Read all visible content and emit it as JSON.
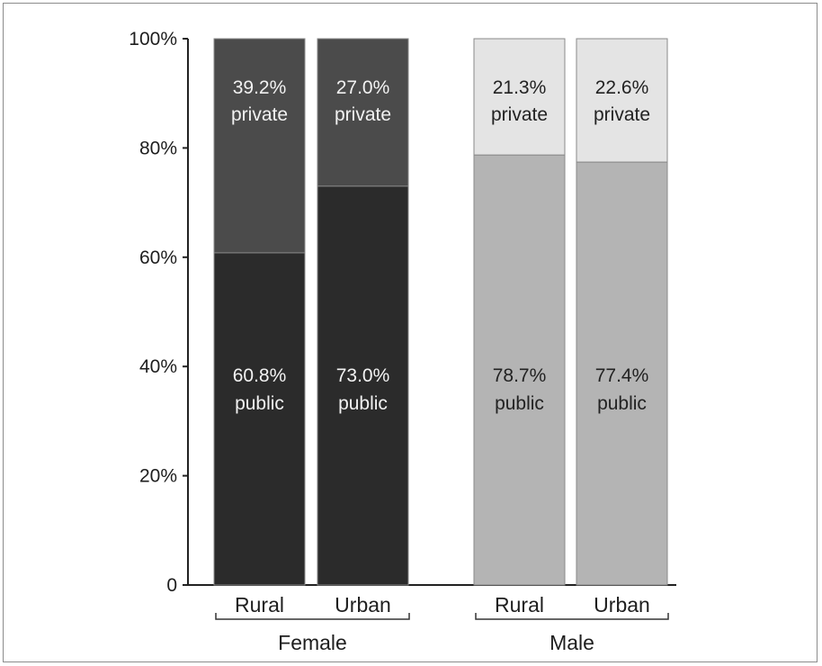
{
  "chart_data": {
    "type": "bar",
    "stacked": true,
    "percent_stacked": true,
    "title": "",
    "xlabel": "",
    "ylabel": "",
    "ylim": [
      0,
      100
    ],
    "y_ticks": [
      {
        "value": 0,
        "label": "0"
      },
      {
        "value": 20,
        "label": "20%"
      },
      {
        "value": 40,
        "label": "40%"
      },
      {
        "value": 60,
        "label": "60%"
      },
      {
        "value": 80,
        "label": "80%"
      },
      {
        "value": 100,
        "label": "100%"
      }
    ],
    "groups": [
      {
        "name": "Female",
        "categories": [
          "Rural",
          "Urban"
        ]
      },
      {
        "name": "Male",
        "categories": [
          "Rural",
          "Urban"
        ]
      }
    ],
    "bars": [
      {
        "group": "Female",
        "category": "Rural",
        "public": 60.8,
        "private": 39.2,
        "public_label": "60.8%",
        "private_label": "39.2%",
        "public_word": "public",
        "private_word": "private",
        "public_color": "#2b2b2b",
        "private_color": "#4b4b4b",
        "text_color": "#f2f2f2"
      },
      {
        "group": "Female",
        "category": "Urban",
        "public": 73.0,
        "private": 27.0,
        "public_label": "73.0%",
        "private_label": "27.0%",
        "public_word": "public",
        "private_word": "private",
        "public_color": "#2b2b2b",
        "private_color": "#4b4b4b",
        "text_color": "#f2f2f2"
      },
      {
        "group": "Male",
        "category": "Rural",
        "public": 78.7,
        "private": 21.3,
        "public_label": "78.7%",
        "private_label": "21.3%",
        "public_word": "public",
        "private_word": "private",
        "public_color": "#b4b4b4",
        "private_color": "#e4e4e4",
        "text_color": "#222222"
      },
      {
        "group": "Male",
        "category": "Urban",
        "public": 77.4,
        "private": 22.6,
        "public_label": "77.4%",
        "private_label": "22.6%",
        "public_word": "public",
        "private_word": "private",
        "public_color": "#b4b4b4",
        "private_color": "#e4e4e4",
        "text_color": "#222222"
      }
    ],
    "grid": false,
    "legend": "none"
  }
}
